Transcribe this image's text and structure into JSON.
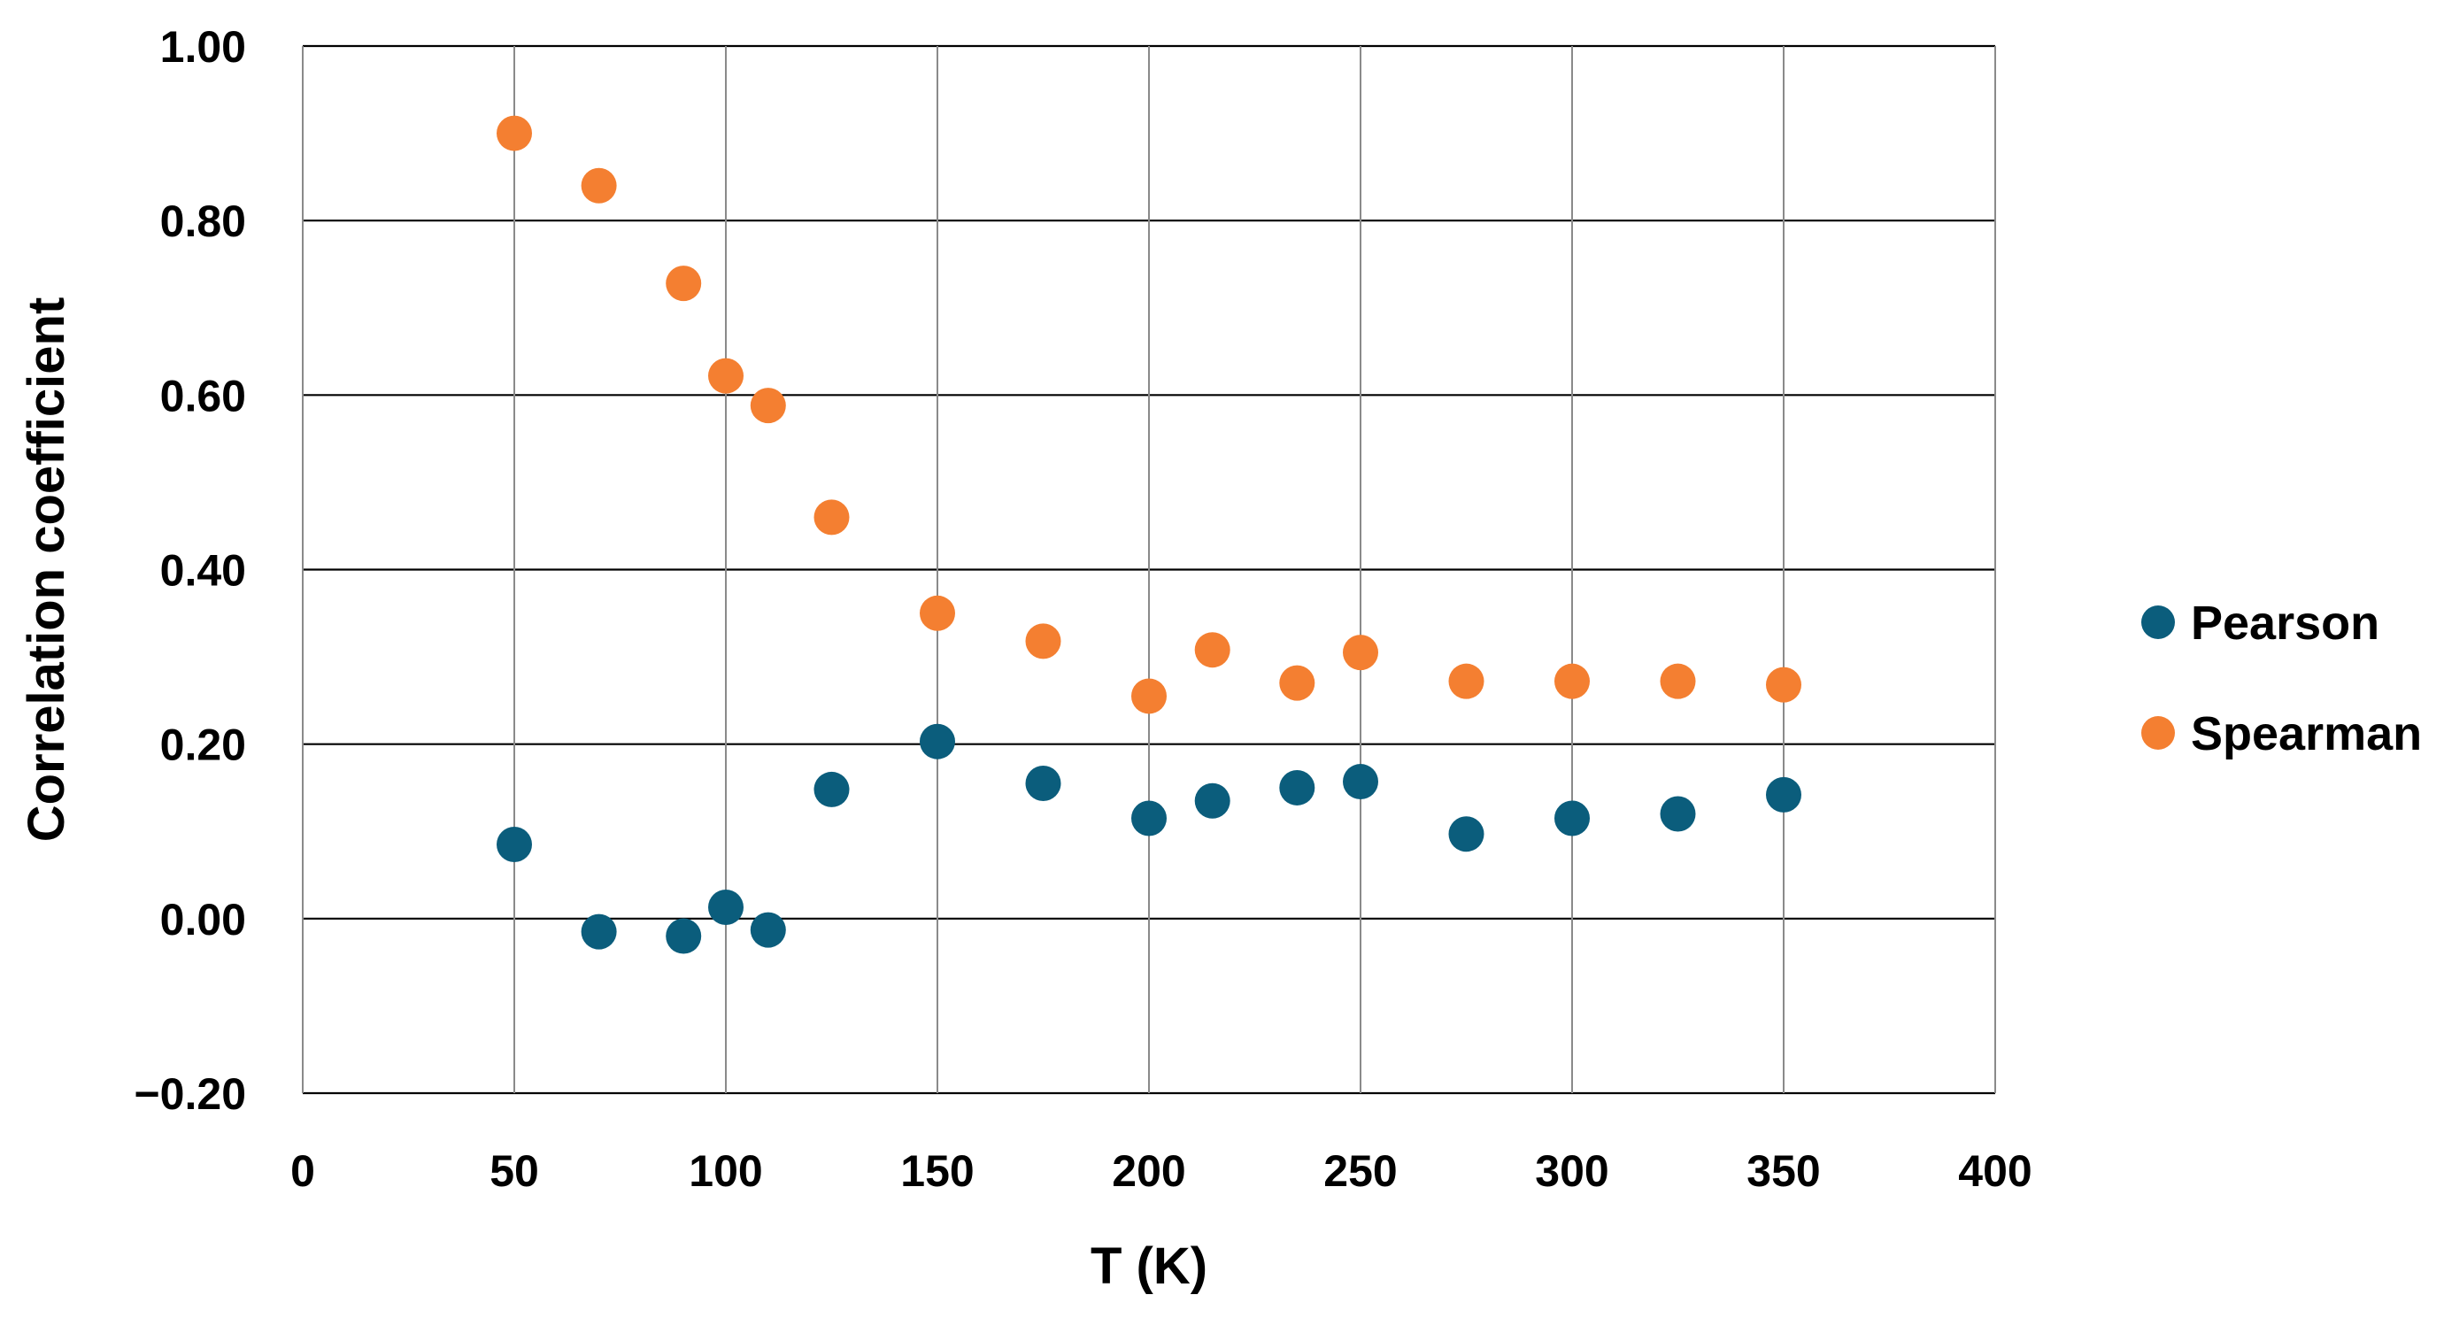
{
  "chart_data": {
    "type": "scatter",
    "title": "",
    "xlabel": "T (K)",
    "ylabel": "Correlation coefficient",
    "xlim": [
      0,
      400
    ],
    "ylim": [
      -0.2,
      1.0
    ],
    "x_ticks": [
      0,
      50,
      100,
      150,
      200,
      250,
      300,
      350,
      400
    ],
    "x_tick_labels": [
      "0",
      "50",
      "100",
      "150",
      "200",
      "250",
      "300",
      "350",
      "400"
    ],
    "y_ticks": [
      -0.2,
      0.0,
      0.2,
      0.4,
      0.6,
      0.8,
      1.0
    ],
    "y_tick_labels": [
      "−0.20",
      "0.00",
      "0.20",
      "0.40",
      "0.60",
      "0.80",
      "1.00"
    ],
    "grid": true,
    "legend_position": "right",
    "series": [
      {
        "name": "Pearson",
        "color": "#0b5d7c",
        "x": [
          50,
          70,
          90,
          100,
          110,
          125,
          150,
          175,
          200,
          215,
          235,
          250,
          275,
          300,
          325,
          350
        ],
        "y": [
          0.085,
          -0.015,
          -0.02,
          0.013,
          -0.013,
          0.148,
          0.203,
          0.155,
          0.115,
          0.135,
          0.15,
          0.157,
          0.097,
          0.115,
          0.12,
          0.142
        ]
      },
      {
        "name": "Spearman",
        "color": "#f47f31",
        "x": [
          50,
          70,
          90,
          100,
          110,
          125,
          150,
          175,
          200,
          215,
          235,
          250,
          275,
          300,
          325,
          350
        ],
        "y": [
          0.9,
          0.84,
          0.728,
          0.622,
          0.588,
          0.46,
          0.35,
          0.318,
          0.255,
          0.308,
          0.27,
          0.305,
          0.272,
          0.272,
          0.272,
          0.268
        ]
      }
    ]
  }
}
